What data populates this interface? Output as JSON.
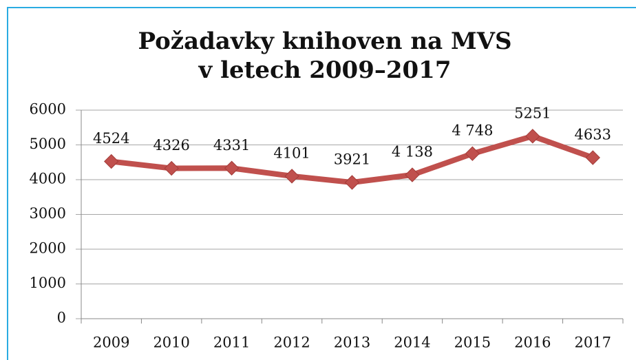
{
  "chart_data": {
    "type": "line",
    "title": [
      "Požadavky  knihoven na MVS",
      "v letech 2009–2017"
    ],
    "categories": [
      "2009",
      "2010",
      "2011",
      "2012",
      "2013",
      "2014",
      "2015",
      "2016",
      "2017"
    ],
    "values": [
      4524,
      4326,
      4331,
      4101,
      3921,
      4138,
      4748,
      5251,
      4633
    ],
    "value_labels": [
      "4524",
      "4326",
      "4331",
      "4101",
      "3921",
      "4 138",
      "4 748",
      "5251",
      "4633"
    ],
    "color": "#c0504d",
    "ylim": [
      0,
      6000
    ],
    "yticks": [
      0,
      1000,
      2000,
      3000,
      4000,
      5000,
      6000
    ],
    "grid": true
  }
}
